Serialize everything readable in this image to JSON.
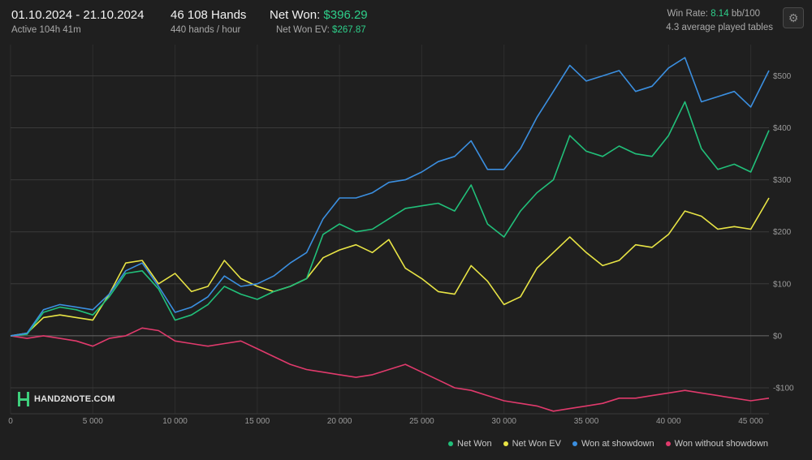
{
  "header": {
    "date_range": "01.10.2024 - 21.10.2024",
    "active": "Active 104h 41m",
    "hands": "46 108 Hands",
    "hands_per_hour": "440 hands / hour",
    "net_won_label": "Net Won:",
    "net_won_value": "$396.29",
    "ev_label": "Net Won  EV:",
    "ev_value": "$267.87",
    "win_rate_label": "Win Rate:",
    "win_rate_value": "8.14",
    "win_rate_unit": "bb/100",
    "tables": "4.3 average played tables",
    "settings_icon": "gear-icon"
  },
  "logo": {
    "text": "HAND2NOTE.COM"
  },
  "chart_data": {
    "type": "line",
    "xlabel": "",
    "ylabel": "",
    "xlim": [
      0,
      46108
    ],
    "ylim": [
      -150,
      560
    ],
    "x_ticks": [
      0,
      5000,
      10000,
      15000,
      20000,
      25000,
      30000,
      35000,
      40000,
      45000
    ],
    "x_tick_labels": [
      "0",
      "5 000",
      "10 000",
      "15 000",
      "20 000",
      "25 000",
      "30 000",
      "35 000",
      "40 000",
      "45 000"
    ],
    "y_ticks": [
      -100,
      0,
      100,
      200,
      300,
      400,
      500
    ],
    "y_tick_labels": [
      "-$100",
      "$0",
      "$100",
      "$200",
      "$300",
      "$400",
      "$500"
    ],
    "grid": true,
    "legend_position": "bottom-right",
    "series": [
      {
        "name": "Net Won",
        "color": "#21c07a",
        "x": [
          0,
          1000,
          2000,
          3000,
          4000,
          5000,
          6000,
          7000,
          8000,
          9000,
          10000,
          11000,
          12000,
          13000,
          14000,
          15000,
          16000,
          17000,
          18000,
          19000,
          20000,
          21000,
          22000,
          23000,
          24000,
          25000,
          26000,
          27000,
          28000,
          29000,
          30000,
          31000,
          32000,
          33000,
          34000,
          35000,
          36000,
          37000,
          38000,
          39000,
          40000,
          41000,
          42000,
          43000,
          44000,
          45000,
          46108
        ],
        "values": [
          0,
          3,
          45,
          55,
          50,
          40,
          75,
          120,
          125,
          90,
          30,
          40,
          60,
          95,
          80,
          70,
          85,
          95,
          110,
          195,
          215,
          200,
          205,
          225,
          245,
          250,
          255,
          240,
          290,
          215,
          190,
          240,
          275,
          300,
          385,
          355,
          345,
          365,
          350,
          345,
          385,
          450,
          360,
          320,
          330,
          315,
          395
        ]
      },
      {
        "name": "Net Won  EV",
        "color": "#e8e445",
        "x": [
          0,
          1000,
          2000,
          3000,
          4000,
          5000,
          6000,
          7000,
          8000,
          9000,
          10000,
          11000,
          12000,
          13000,
          14000,
          15000,
          16000,
          17000,
          18000,
          19000,
          20000,
          21000,
          22000,
          23000,
          24000,
          25000,
          26000,
          27000,
          28000,
          29000,
          30000,
          31000,
          32000,
          33000,
          34000,
          35000,
          36000,
          37000,
          38000,
          39000,
          40000,
          41000,
          42000,
          43000,
          44000,
          45000,
          46108
        ],
        "values": [
          0,
          5,
          35,
          40,
          35,
          30,
          80,
          140,
          145,
          100,
          120,
          85,
          95,
          145,
          110,
          95,
          85,
          95,
          110,
          150,
          165,
          175,
          160,
          185,
          130,
          110,
          85,
          80,
          135,
          105,
          60,
          75,
          130,
          160,
          190,
          160,
          135,
          145,
          175,
          170,
          195,
          240,
          230,
          205,
          210,
          205,
          265
        ]
      },
      {
        "name": "Won at showdown",
        "color": "#3b8fe0",
        "x": [
          0,
          1000,
          2000,
          3000,
          4000,
          5000,
          6000,
          7000,
          8000,
          9000,
          10000,
          11000,
          12000,
          13000,
          14000,
          15000,
          16000,
          17000,
          18000,
          19000,
          20000,
          21000,
          22000,
          23000,
          24000,
          25000,
          26000,
          27000,
          28000,
          29000,
          30000,
          31000,
          32000,
          33000,
          34000,
          35000,
          36000,
          37000,
          38000,
          39000,
          40000,
          41000,
          42000,
          43000,
          44000,
          45000,
          46108
        ],
        "values": [
          0,
          5,
          50,
          60,
          55,
          50,
          80,
          125,
          140,
          95,
          45,
          55,
          75,
          115,
          95,
          100,
          115,
          140,
          160,
          225,
          265,
          265,
          275,
          295,
          300,
          315,
          335,
          345,
          375,
          320,
          320,
          360,
          420,
          470,
          520,
          490,
          500,
          510,
          470,
          480,
          515,
          535,
          450,
          460,
          470,
          440,
          510
        ]
      },
      {
        "name": "Won without showdown",
        "color": "#e03a6c",
        "x": [
          0,
          1000,
          2000,
          3000,
          4000,
          5000,
          6000,
          7000,
          8000,
          9000,
          10000,
          11000,
          12000,
          13000,
          14000,
          15000,
          16000,
          17000,
          18000,
          19000,
          20000,
          21000,
          22000,
          23000,
          24000,
          25000,
          26000,
          27000,
          28000,
          29000,
          30000,
          31000,
          32000,
          33000,
          34000,
          35000,
          36000,
          37000,
          38000,
          39000,
          40000,
          41000,
          42000,
          43000,
          44000,
          45000,
          46108
        ],
        "values": [
          0,
          -5,
          0,
          -5,
          -10,
          -20,
          -5,
          0,
          15,
          10,
          -10,
          -15,
          -20,
          -15,
          -10,
          -25,
          -40,
          -55,
          -65,
          -70,
          -75,
          -80,
          -75,
          -65,
          -55,
          -70,
          -85,
          -100,
          -105,
          -115,
          -125,
          -130,
          -135,
          -145,
          -140,
          -135,
          -130,
          -120,
          -120,
          -115,
          -110,
          -105,
          -110,
          -115,
          -120,
          -125,
          -120
        ]
      }
    ]
  }
}
